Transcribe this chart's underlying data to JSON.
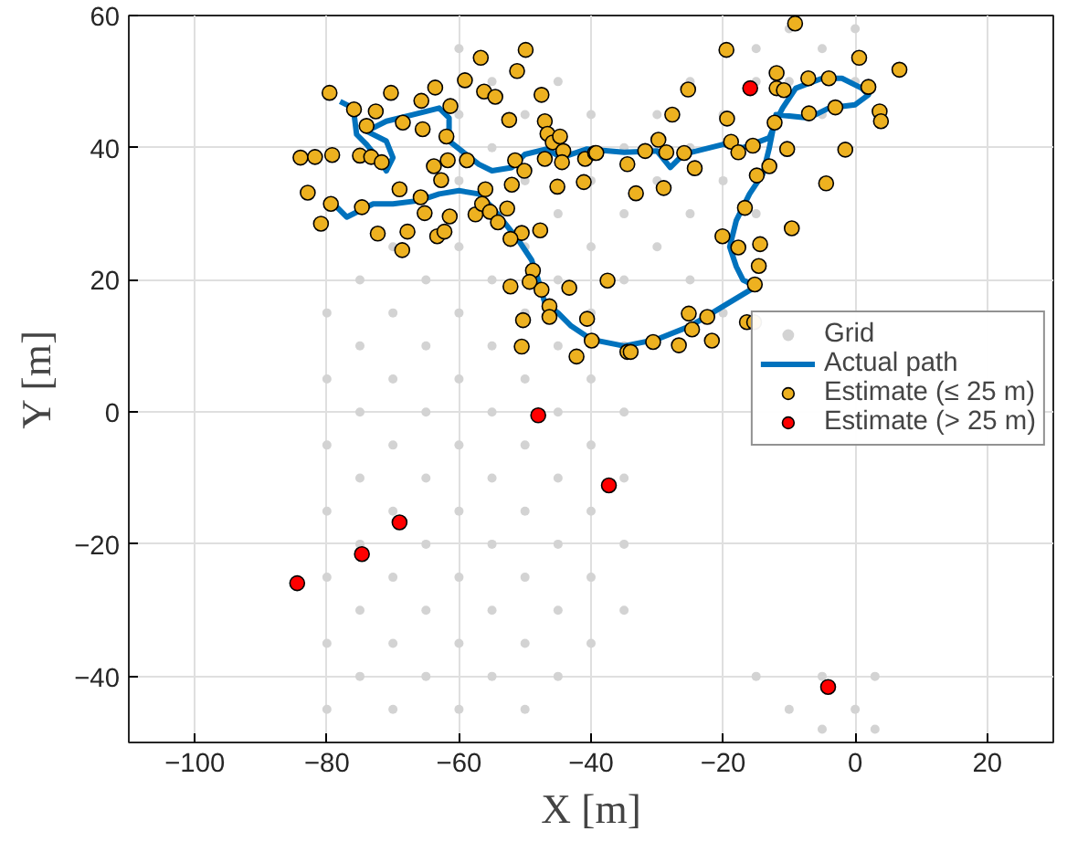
{
  "chart_data": {
    "type": "scatter",
    "xlabel": "X [m]",
    "ylabel": "Y [m]",
    "xlim": [
      -110,
      30
    ],
    "ylim": [
      -50,
      60
    ],
    "xticks": [
      -100,
      -80,
      -60,
      -40,
      -20,
      0,
      20
    ],
    "yticks": [
      -40,
      -20,
      0,
      20,
      40,
      60
    ],
    "grid": true,
    "legend": "right",
    "marker": "circle",
    "series": [
      {
        "name": "Grid",
        "color": "#d3d3d3",
        "x": [
          -80,
          -80,
          -80,
          -80,
          -80,
          -80,
          -80,
          -75,
          -75,
          -75,
          -75,
          -75,
          -75,
          -75,
          -70,
          -70,
          -70,
          -70,
          -70,
          -70,
          -70,
          -70,
          -65,
          -65,
          -65,
          -65,
          -65,
          -65,
          -65,
          -60,
          -60,
          -60,
          -60,
          -60,
          -60,
          -60,
          -60,
          -60,
          -60,
          -60,
          -55,
          -55,
          -55,
          -55,
          -55,
          -55,
          -55,
          -55,
          -55,
          -50,
          -50,
          -50,
          -50,
          -50,
          -50,
          -50,
          -50,
          -50,
          -50,
          -45,
          -45,
          -45,
          -45,
          -45,
          -45,
          -45,
          -45,
          -45,
          -40,
          -40,
          -40,
          -40,
          -40,
          -40,
          -40,
          -40,
          -40,
          -35,
          -35,
          -35,
          -35,
          -35,
          -35,
          -35,
          -35,
          -30,
          -30,
          -30,
          -25,
          -25,
          -25,
          -25,
          -20,
          -20,
          -20,
          -15,
          -15,
          -15,
          -15,
          -15,
          -10,
          -10,
          -10,
          -5,
          -5,
          -5,
          -5,
          0,
          0,
          0,
          3,
          3
        ],
        "values": [
          -45,
          -35,
          -25,
          -15,
          -5,
          5,
          15,
          -40,
          -30,
          -20,
          -10,
          0,
          10,
          20,
          -45,
          -35,
          -25,
          -15,
          -5,
          5,
          15,
          25,
          -40,
          -30,
          -20,
          -10,
          0,
          10,
          20,
          -45,
          -35,
          -25,
          -15,
          -5,
          5,
          15,
          25,
          35,
          45,
          55,
          -40,
          -30,
          -20,
          -10,
          0,
          10,
          20,
          40,
          50,
          -45,
          -35,
          -25,
          -15,
          -5,
          5,
          15,
          25,
          35,
          45,
          -40,
          -30,
          -20,
          -10,
          0,
          10,
          20,
          30,
          50,
          -35,
          -25,
          -15,
          -5,
          5,
          15,
          25,
          35,
          45,
          -30,
          -20,
          -10,
          0,
          10,
          20,
          30,
          40,
          25,
          35,
          45,
          20,
          30,
          40,
          50,
          15,
          35,
          45,
          -40,
          30,
          40,
          50,
          55,
          -45,
          50,
          58,
          -48,
          -40,
          45,
          55,
          -45,
          50,
          58,
          -48,
          -40
        ]
      },
      {
        "name": "Actual path",
        "type": "line",
        "marker": "none",
        "color": "#0072bd",
        "x": [
          -78,
          -76,
          -75.5,
          -74,
          -72,
          -71,
          -70,
          -71,
          -74,
          -71,
          -67,
          -63,
          -61.5,
          -61.5,
          -57,
          -55,
          -52,
          -50,
          -46.7,
          -44.5,
          -40.6,
          -35,
          -30,
          -28,
          -26,
          -20,
          -17,
          -13,
          -12,
          -11,
          -9,
          -5,
          -2,
          1,
          2,
          0,
          -4,
          -7,
          -12,
          -13,
          -14,
          -16,
          -18,
          -19,
          -18,
          -17,
          -15,
          -20,
          -25,
          -30,
          -35,
          -40,
          -43,
          -45,
          -47,
          -48,
          -49,
          -51,
          -53,
          -55,
          -57,
          -60,
          -63,
          -66,
          -70,
          -73,
          -77,
          -79
        ],
        "values": [
          47,
          46,
          42,
          40.5,
          38,
          36.5,
          38.5,
          41,
          42.5,
          44,
          45,
          46,
          44.5,
          41,
          37.5,
          36.5,
          37,
          39,
          39.8,
          38.5,
          39.8,
          39.3,
          39.5,
          37,
          39,
          40.5,
          40,
          41.5,
          44,
          46,
          49,
          50.5,
          50.5,
          49,
          48,
          46.5,
          46,
          44.5,
          45,
          40,
          36,
          33,
          29,
          25,
          22,
          20,
          19,
          16,
          13,
          11,
          10,
          11,
          13,
          15,
          16.5,
          20,
          23,
          26,
          28.5,
          31,
          33,
          33.5,
          33,
          32,
          31.5,
          31.5,
          29.5,
          31.5
        ]
      },
      {
        "name": "Estimate (≤ 25 m)",
        "color": "#edb120",
        "x": [
          -79.6,
          -70.3,
          -75.9,
          -72.6,
          -74.0,
          -65.7,
          -63.6,
          -59.1,
          -56.7,
          -49.9,
          -51.2,
          -56.2,
          -54.5,
          -47.5,
          -61.3,
          -68.5,
          -65.5,
          -52.4,
          -47.0,
          -46.6,
          -45.8,
          -44.7,
          -44.2,
          -44.4,
          -61.9,
          -84.0,
          -81.8,
          -79.2,
          -75.0,
          -73.3,
          -71.7,
          -61.7,
          -58.8,
          -51.5,
          -50.1,
          -52.0,
          -47.0,
          -40.9,
          -39.4,
          -41.1,
          -45.1,
          -63.8,
          -62.7,
          -82.9,
          -69.0,
          -65.8,
          -79.4,
          -74.7,
          -80.9,
          -72.3,
          -65.2,
          -61.4,
          -67.8,
          -68.6,
          -63.3,
          -62.2,
          -57.5,
          -56.5,
          -55.3,
          -56.0,
          -52.7,
          -54.1,
          -50.5,
          -47.7,
          -52.2,
          -48.8,
          -49.3,
          -52.2,
          -47.5,
          -46.3,
          -43.3,
          -37.5,
          -46.3,
          -50.3,
          -40.6,
          -50.5,
          -42.2,
          -39.9,
          -34.5,
          -9.1,
          -19.5,
          0.6,
          6.7,
          -11.9,
          -7.1,
          -4.0,
          -11.9,
          -10.8,
          2.0,
          -25.3,
          3.7,
          3.9,
          -7.0,
          -3.0,
          -27.7,
          -19.4,
          -12.2,
          -29.8,
          -18.8,
          -17.7,
          -15.5,
          -28.6,
          -25.9,
          -31.8,
          -39.2,
          -10.3,
          -1.5,
          -34.5,
          -24.3,
          -13.0,
          -14.9,
          -33.2,
          -29.0,
          -4.4,
          -16.7,
          -9.6,
          -20.1,
          -17.7,
          -14.4,
          -14.6,
          -15.2,
          -25.2,
          -22.4,
          -16.4,
          -15.3,
          -24.7,
          -26.7,
          -21.7,
          -30.6,
          -34.0
        ],
        "values": [
          48.3,
          48.3,
          45.8,
          45.5,
          43.3,
          47.1,
          49.1,
          50.2,
          53.6,
          54.8,
          51.6,
          48.5,
          47.7,
          48.0,
          46.3,
          43.8,
          42.8,
          44.2,
          44.0,
          42.1,
          40.8,
          41.7,
          39.5,
          37.8,
          41.7,
          38.5,
          38.6,
          38.9,
          38.8,
          38.6,
          37.8,
          38.1,
          38.1,
          38.1,
          36.5,
          34.4,
          38.3,
          38.3,
          39.2,
          34.8,
          34.1,
          37.2,
          35.1,
          33.2,
          33.7,
          32.5,
          31.5,
          31.0,
          28.5,
          27.0,
          30.1,
          29.6,
          27.3,
          24.5,
          26.6,
          27.3,
          29.9,
          31.5,
          30.3,
          33.7,
          30.8,
          28.7,
          27.1,
          27.5,
          26.2,
          21.4,
          19.7,
          19.0,
          18.5,
          16.0,
          18.8,
          19.9,
          14.4,
          13.9,
          14.1,
          9.9,
          8.4,
          10.8,
          9.1,
          58.8,
          54.8,
          53.6,
          51.8,
          51.3,
          50.5,
          50.5,
          49.0,
          48.7,
          49.2,
          48.8,
          45.5,
          44.0,
          45.2,
          46.1,
          45.0,
          44.4,
          43.8,
          41.2,
          40.9,
          39.3,
          40.3,
          39.3,
          39.2,
          39.5,
          39.2,
          39.8,
          39.7,
          37.5,
          36.9,
          37.2,
          35.8,
          33.1,
          33.9,
          34.6,
          30.9,
          27.8,
          26.6,
          24.9,
          25.4,
          22.1,
          19.3,
          14.9,
          14.4,
          13.6,
          13.6,
          12.5,
          10.1,
          10.8,
          10.6,
          9.1
        ]
      },
      {
        "name": "Estimate (> 25 m)",
        "color": "#ff0000",
        "x": [
          -15.9,
          -48.0,
          -37.3,
          -69.0,
          -74.7,
          -84.5,
          -4.1
        ],
        "values": [
          49.0,
          -0.5,
          -11.1,
          -16.7,
          -21.5,
          -25.9,
          -41.6
        ]
      }
    ]
  }
}
